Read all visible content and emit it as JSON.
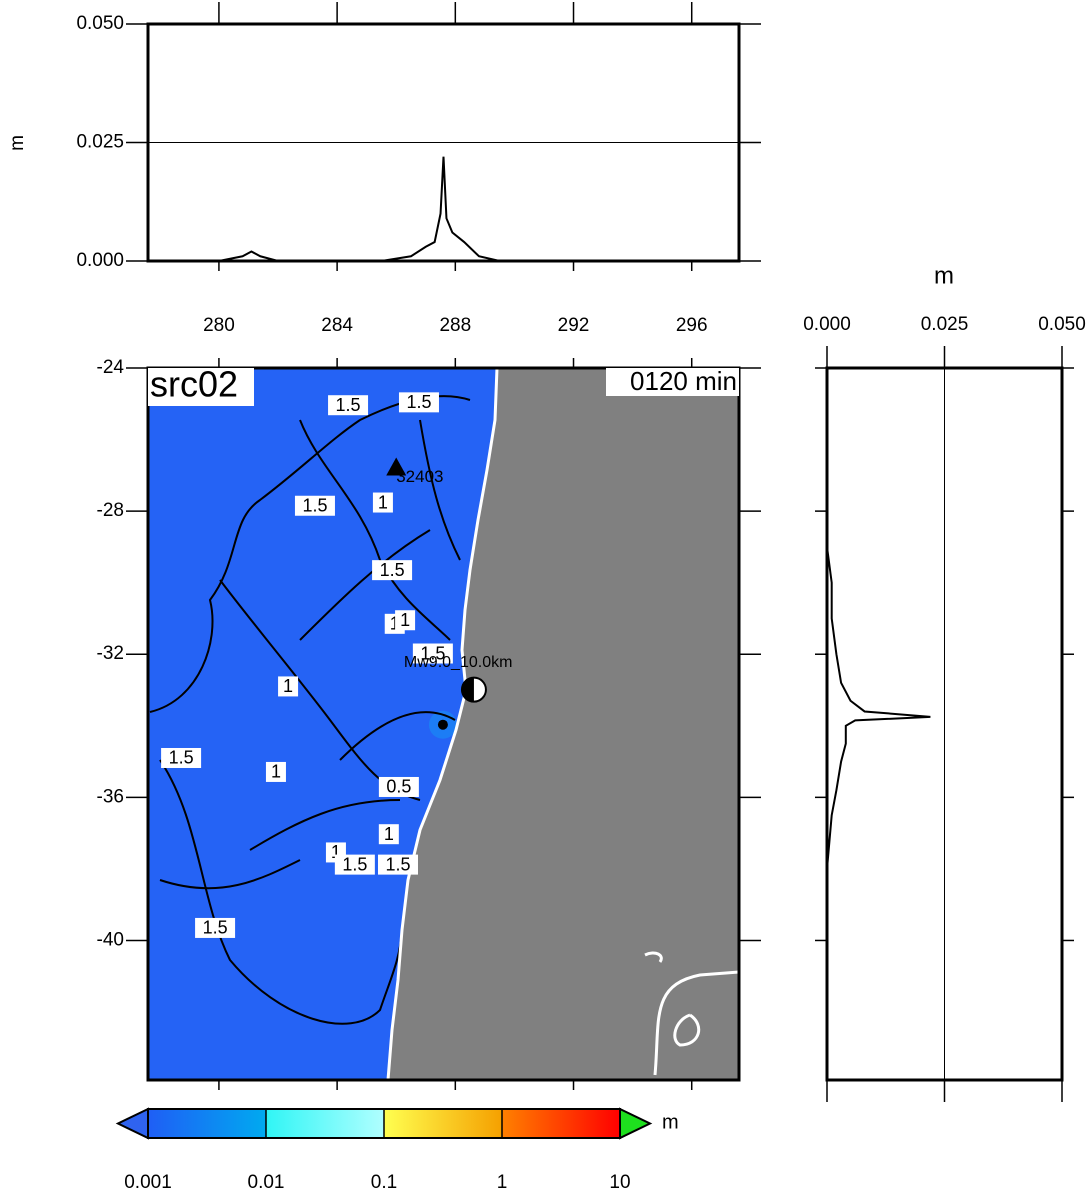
{
  "chart_data": [
    {
      "type": "line",
      "ylabel": "m",
      "color": "#000000",
      "grid": true,
      "xlim": [
        277.6,
        297.6
      ],
      "xticks": [
        280,
        284,
        288,
        292,
        296
      ],
      "ylim": [
        0,
        0.05
      ],
      "yticks": [
        {
          "value": 0,
          "label": "0.000"
        },
        {
          "value": 0.025,
          "label": "0.025"
        },
        {
          "value": 0.05,
          "label": "0.050"
        }
      ],
      "x": [
        277.6,
        279,
        280,
        280.8,
        281.1,
        281.4,
        282,
        284,
        285.5,
        286.5,
        287,
        287.3,
        287.5,
        287.6,
        287.7,
        287.9,
        288.3,
        288.8,
        289.5,
        292,
        297.6
      ],
      "values": [
        0,
        0,
        0,
        0.001,
        0.002,
        0.001,
        0,
        0,
        0,
        0.001,
        0.003,
        0.004,
        0.01,
        0.022,
        0.009,
        0.006,
        0.004,
        0.001,
        0,
        0,
        0
      ]
    },
    {
      "type": "hline",
      "xlabel": "m",
      "color": "#000000",
      "grid": true,
      "xlim": [
        0,
        0.05
      ],
      "xticks": [
        {
          "value": 0,
          "label": "0.000"
        },
        {
          "value": 0.025,
          "label": "0.025"
        },
        {
          "value": 0.05,
          "label": "0.050"
        }
      ],
      "ylim": [
        -43.9,
        -24
      ],
      "y": [
        -24,
        -29,
        -30,
        -31,
        -32,
        -32.8,
        -33.3,
        -33.6,
        -33.75,
        -33.85,
        -34,
        -34.5,
        -35,
        -35.8,
        -36.5,
        -38,
        -43.9
      ],
      "values": [
        0,
        0,
        0.001,
        0.001,
        0.002,
        0.003,
        0.005,
        0.008,
        0.022,
        0.006,
        0.004,
        0.004,
        0.003,
        0.002,
        0.001,
        0,
        0
      ]
    },
    {
      "type": "map",
      "title": "src02",
      "time_label": "0120 min",
      "xlim": [
        277.6,
        297.6
      ],
      "ylim": [
        -43.9,
        -24
      ],
      "yticks": [
        -24,
        -28,
        -32,
        -36,
        -40
      ],
      "ocean_color": "#2563f5",
      "land_color": "#808080",
      "contour_labels": [
        {
          "label": "1.5",
          "lon": 284.37,
          "lat": -25.04
        },
        {
          "label": "1.5",
          "lon": 286.77,
          "lat": -24.96
        },
        {
          "label": "1.5",
          "lon": 283.25,
          "lat": -27.85
        },
        {
          "label": "1",
          "lon": 285.55,
          "lat": -27.76
        },
        {
          "label": "1.5",
          "lon": 285.86,
          "lat": -29.65
        },
        {
          "label": "1",
          "lon": 285.95,
          "lat": -31.15
        },
        {
          "label": "1",
          "lon": 286.3,
          "lat": -31.05
        },
        {
          "label": "1.5",
          "lon": 287.24,
          "lat": -31.98
        },
        {
          "label": "1",
          "lon": 282.34,
          "lat": -32.9
        },
        {
          "label": "1.5",
          "lon": 278.72,
          "lat": -34.9
        },
        {
          "label": "1",
          "lon": 281.93,
          "lat": -35.29
        },
        {
          "label": "0.5",
          "lon": 286.09,
          "lat": -35.71
        },
        {
          "label": "1",
          "lon": 285.75,
          "lat": -37.03
        },
        {
          "label": "1",
          "lon": 283.96,
          "lat": -37.54
        },
        {
          "label": "1.5",
          "lon": 284.6,
          "lat": -37.88
        },
        {
          "label": "1.5",
          "lon": 286.06,
          "lat": -37.88
        },
        {
          "label": "1.5",
          "lon": 279.87,
          "lat": -39.65
        }
      ],
      "station": {
        "label": "32403",
        "lon": 286.0,
        "lat": -26.78
      },
      "epicenter": {
        "label": "Mw9.0_10.0km",
        "lon": 288.63,
        "lat": -32.99
      },
      "profile_point": {
        "lon": 287.58,
        "lat": -33.97
      }
    },
    {
      "type": "colorbar",
      "unit": "m",
      "log": true,
      "lim": [
        0.001,
        10
      ],
      "ticks": [
        0.001,
        0.01,
        0.1,
        1,
        10
      ],
      "colors": [
        [
          "#1f5ef5",
          "#00aaf0"
        ],
        [
          "#30f5f5",
          "#b0ffff"
        ],
        [
          "#ffff50",
          "#f5a000"
        ],
        [
          "#ff8000",
          "#ff0000"
        ]
      ],
      "under_color": "#2f63f0",
      "over_color": "#1ee01e"
    }
  ]
}
